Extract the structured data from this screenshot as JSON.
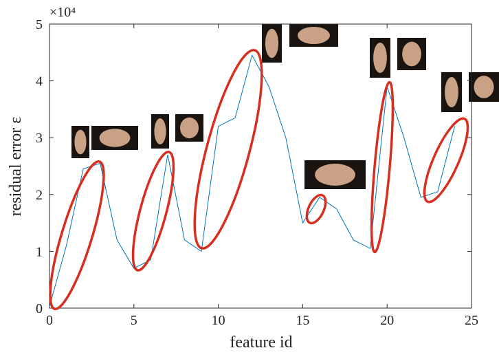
{
  "chart_data": {
    "type": "line",
    "x_label": "feature id",
    "y_label": "residual error ε",
    "y_multiplier": "×10⁴",
    "x": [
      0,
      1,
      2,
      3,
      4,
      5,
      6,
      7,
      8,
      9,
      10,
      11,
      12,
      13,
      14,
      15,
      16,
      17,
      18,
      19,
      20,
      21,
      22,
      23,
      24
    ],
    "values": [
      0.03,
      1.1,
      2.45,
      2.55,
      1.2,
      0.7,
      0.85,
      2.7,
      1.2,
      1.0,
      3.2,
      3.35,
      4.45,
      3.9,
      3.0,
      1.5,
      1.95,
      1.75,
      1.2,
      1.05,
      3.9,
      3.0,
      1.95,
      2.05,
      3.2
    ],
    "color": "#0072bd",
    "xlim": [
      0,
      25
    ],
    "xticks": [
      0,
      5,
      10,
      15,
      20,
      25
    ],
    "ylim": [
      0,
      5
    ],
    "yticks": [
      0,
      1,
      2,
      3,
      4,
      5
    ]
  }
}
